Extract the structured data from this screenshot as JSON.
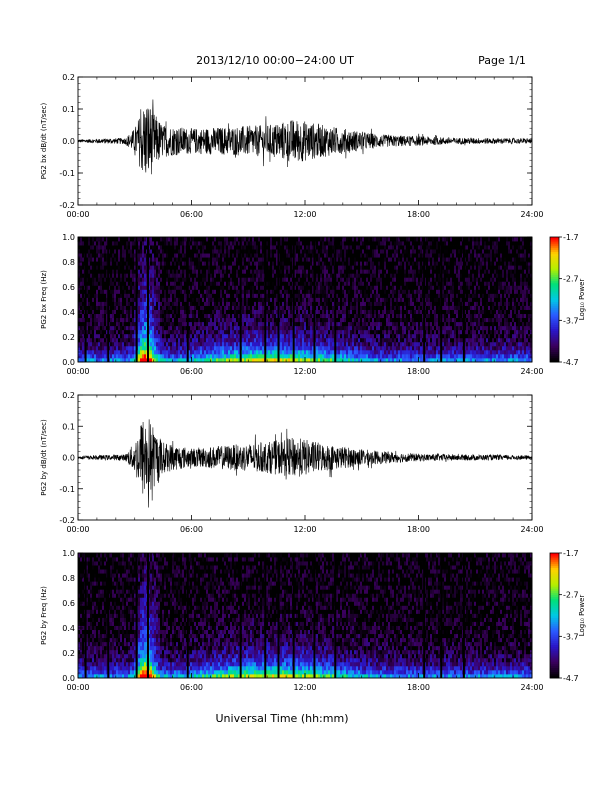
{
  "header": {
    "title": "2013/12/10  00:00−24:00 UT",
    "page": "Page 1/1"
  },
  "footer": {
    "xlabel": "Universal Time (hh:mm)"
  },
  "colors": {
    "colormap": [
      "#000000",
      "#3b005f",
      "#2a16c8",
      "#2a5aff",
      "#00c8e6",
      "#00e07a",
      "#b4f000",
      "#ffd200",
      "#ff0000"
    ],
    "frame": "#000000",
    "trace": "#000000"
  },
  "chart_data": [
    {
      "type": "line",
      "ylabel": "PG2 bx dB/dt (nT/sec)",
      "xlim": [
        0,
        24
      ],
      "ylim": [
        -0.2,
        0.2
      ],
      "x_ticks": [
        "00:00",
        "06:00",
        "12:00",
        "18:00",
        "24:00"
      ],
      "y_ticks": [
        "-0.2",
        "-0.1",
        "0.0",
        "0.1",
        "0.2"
      ],
      "envelope_x": [
        0,
        2.5,
        3.0,
        3.5,
        3.7,
        4.0,
        4.5,
        6.0,
        8.0,
        10.0,
        11.5,
        13.0,
        14.0,
        16.0,
        18.0,
        20.0,
        24.0
      ],
      "envelope_y": [
        0.005,
        0.01,
        0.04,
        0.12,
        0.13,
        0.09,
        0.05,
        0.04,
        0.045,
        0.05,
        0.07,
        0.05,
        0.04,
        0.02,
        0.015,
        0.01,
        0.008
      ]
    },
    {
      "type": "heatmap",
      "ylabel": "PG2 bx Freq (Hz)",
      "xlim": [
        0,
        24
      ],
      "ylim": [
        0,
        1.0
      ],
      "x_ticks": [
        "00:00",
        "06:00",
        "12:00",
        "18:00",
        "24:00"
      ],
      "y_ticks": [
        "0.0",
        "0.2",
        "0.4",
        "0.6",
        "0.8",
        "1.0"
      ],
      "colorbar_label": "Log₁₀ Power",
      "colorbar_ticks": [
        "-1.7",
        "-2.7",
        "-3.7",
        "-4.7"
      ],
      "colorbar_range": [
        -4.7,
        -1.7
      ],
      "gap_times": [
        0.4,
        1.6,
        3.1,
        3.7,
        5.8,
        8.6,
        9.9,
        10.6,
        11.4,
        12.5,
        13.6,
        18.3,
        19.2,
        20.4
      ]
    },
    {
      "type": "line",
      "ylabel": "PG2 by dB/dt (nT/sec)",
      "xlim": [
        0,
        24
      ],
      "ylim": [
        -0.2,
        0.2
      ],
      "x_ticks": [
        "00:00",
        "06:00",
        "12:00",
        "18:00",
        "24:00"
      ],
      "y_ticks": [
        "-0.2",
        "-0.1",
        "0.0",
        "0.1",
        "0.2"
      ],
      "envelope_x": [
        0,
        2.5,
        3.0,
        3.4,
        3.7,
        4.0,
        4.5,
        6.0,
        8.0,
        10.0,
        11.5,
        13.0,
        14.0,
        16.0,
        18.0,
        20.0,
        24.0
      ],
      "envelope_y": [
        0.005,
        0.01,
        0.05,
        0.13,
        0.14,
        0.1,
        0.05,
        0.03,
        0.04,
        0.05,
        0.065,
        0.045,
        0.035,
        0.02,
        0.012,
        0.01,
        0.007
      ]
    },
    {
      "type": "heatmap",
      "ylabel": "PG2 by Freq (Hz)",
      "xlim": [
        0,
        24
      ],
      "ylim": [
        0,
        1.0
      ],
      "x_ticks": [
        "00:00",
        "06:00",
        "12:00",
        "18:00",
        "24:00"
      ],
      "y_ticks": [
        "0.0",
        "0.2",
        "0.4",
        "0.6",
        "0.8",
        "1.0"
      ],
      "colorbar_label": "Log₁₀ Power",
      "colorbar_ticks": [
        "-1.7",
        "-2.7",
        "-3.7",
        "-4.7"
      ],
      "colorbar_range": [
        -4.7,
        -1.7
      ],
      "gap_times": [
        0.4,
        1.6,
        3.1,
        3.7,
        5.8,
        8.6,
        9.9,
        10.6,
        11.4,
        12.5,
        13.6,
        18.3,
        19.2,
        20.4
      ]
    }
  ]
}
